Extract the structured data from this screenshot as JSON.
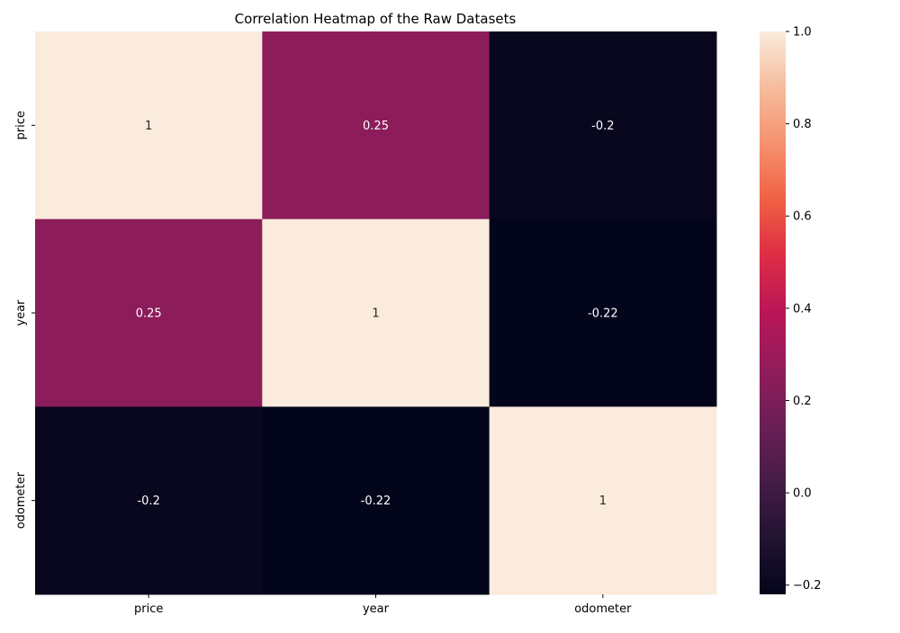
{
  "chart_data": {
    "type": "heatmap",
    "title": "Correlation Heatmap of the Raw Datasets",
    "xlabel": "",
    "ylabel": "",
    "x_categories": [
      "price",
      "year",
      "odometer"
    ],
    "y_categories": [
      "price",
      "year",
      "odometer"
    ],
    "values": [
      [
        1,
        0.25,
        -0.2
      ],
      [
        0.25,
        1,
        -0.22
      ],
      [
        -0.2,
        -0.22,
        1
      ]
    ],
    "annotations": [
      [
        "1",
        "0.25",
        "-0.2"
      ],
      [
        "0.25",
        "1",
        "-0.22"
      ],
      [
        "-0.2",
        "-0.22",
        "1"
      ]
    ],
    "colorbar": {
      "range": [
        -0.22,
        1
      ],
      "ticks": [
        -0.2,
        0.0,
        0.2,
        0.4,
        0.6,
        0.8,
        1.0
      ],
      "tick_labels": [
        "−0.2",
        "0.0",
        "0.2",
        "0.4",
        "0.6",
        "0.8",
        "1.0"
      ],
      "colormap": "rocket",
      "stops": [
        {
          "v": 0.0,
          "color": "#03051a"
        },
        {
          "v": 0.1,
          "color": "#221331"
        },
        {
          "v": 0.2,
          "color": "#451c47"
        },
        {
          "v": 0.3,
          "color": "#6b1f56"
        },
        {
          "v": 0.4,
          "color": "#921c5b"
        },
        {
          "v": 0.5,
          "color": "#b91657"
        },
        {
          "v": 0.6,
          "color": "#dd2c45"
        },
        {
          "v": 0.7,
          "color": "#f06043"
        },
        {
          "v": 0.8,
          "color": "#f5916e"
        },
        {
          "v": 0.9,
          "color": "#f6bc9c"
        },
        {
          "v": 1.0,
          "color": "#faebdd"
        }
      ]
    },
    "grid": false,
    "legend": "colorbar-right"
  }
}
